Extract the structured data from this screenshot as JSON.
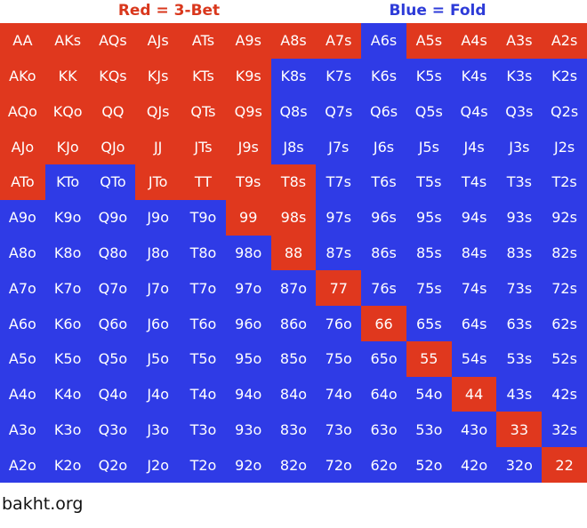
{
  "legend": [
    {
      "label": "Red = 3-Bet",
      "color": "#d9371c"
    },
    {
      "label": "Blue = Fold",
      "color": "#2d3bd8"
    }
  ],
  "palette": {
    "red": "#e0381e",
    "blue": "#2f3be6"
  },
  "grid": {
    "rows": [
      [
        "AA",
        "AKs",
        "AQs",
        "AJs",
        "ATs",
        "A9s",
        "A8s",
        "A7s",
        "A6s",
        "A5s",
        "A4s",
        "A3s",
        "A2s"
      ],
      [
        "AKo",
        "KK",
        "KQs",
        "KJs",
        "KTs",
        "K9s",
        "K8s",
        "K7s",
        "K6s",
        "K5s",
        "K4s",
        "K3s",
        "K2s"
      ],
      [
        "AQo",
        "KQo",
        "QQ",
        "QJs",
        "QTs",
        "Q9s",
        "Q8s",
        "Q7s",
        "Q6s",
        "Q5s",
        "Q4s",
        "Q3s",
        "Q2s"
      ],
      [
        "AJo",
        "KJo",
        "QJo",
        "JJ",
        "JTs",
        "J9s",
        "J8s",
        "J7s",
        "J6s",
        "J5s",
        "J4s",
        "J3s",
        "J2s"
      ],
      [
        "ATo",
        "KTo",
        "QTo",
        "JTo",
        "TT",
        "T9s",
        "T8s",
        "T7s",
        "T6s",
        "T5s",
        "T4s",
        "T3s",
        "T2s"
      ],
      [
        "A9o",
        "K9o",
        "Q9o",
        "J9o",
        "T9o",
        "99",
        "98s",
        "97s",
        "96s",
        "95s",
        "94s",
        "93s",
        "92s"
      ],
      [
        "A8o",
        "K8o",
        "Q8o",
        "J8o",
        "T8o",
        "98o",
        "88",
        "87s",
        "86s",
        "85s",
        "84s",
        "83s",
        "82s"
      ],
      [
        "A7o",
        "K7o",
        "Q7o",
        "J7o",
        "T7o",
        "97o",
        "87o",
        "77",
        "76s",
        "75s",
        "74s",
        "73s",
        "72s"
      ],
      [
        "A6o",
        "K6o",
        "Q6o",
        "J6o",
        "T6o",
        "96o",
        "86o",
        "76o",
        "66",
        "65s",
        "64s",
        "63s",
        "62s"
      ],
      [
        "A5o",
        "K5o",
        "Q5o",
        "J5o",
        "T5o",
        "95o",
        "85o",
        "75o",
        "65o",
        "55",
        "54s",
        "53s",
        "52s"
      ],
      [
        "A4o",
        "K4o",
        "Q4o",
        "J4o",
        "T4o",
        "94o",
        "84o",
        "74o",
        "64o",
        "54o",
        "44",
        "43s",
        "42s"
      ],
      [
        "A3o",
        "K3o",
        "Q3o",
        "J3o",
        "T3o",
        "93o",
        "83o",
        "73o",
        "63o",
        "53o",
        "43o",
        "33",
        "32s"
      ],
      [
        "A2o",
        "K2o",
        "Q2o",
        "J2o",
        "T2o",
        "92o",
        "82o",
        "72o",
        "62o",
        "52o",
        "42o",
        "32o",
        "22"
      ]
    ],
    "colors": [
      [
        "red",
        "red",
        "red",
        "red",
        "red",
        "red",
        "red",
        "red",
        "blue",
        "red",
        "red",
        "red",
        "red"
      ],
      [
        "red",
        "red",
        "red",
        "red",
        "red",
        "red",
        "blue",
        "blue",
        "blue",
        "blue",
        "blue",
        "blue",
        "blue"
      ],
      [
        "red",
        "red",
        "red",
        "red",
        "red",
        "red",
        "blue",
        "blue",
        "blue",
        "blue",
        "blue",
        "blue",
        "blue"
      ],
      [
        "red",
        "red",
        "red",
        "red",
        "red",
        "red",
        "blue",
        "blue",
        "blue",
        "blue",
        "blue",
        "blue",
        "blue"
      ],
      [
        "red",
        "blue",
        "blue",
        "red",
        "red",
        "red",
        "red",
        "blue",
        "blue",
        "blue",
        "blue",
        "blue",
        "blue"
      ],
      [
        "blue",
        "blue",
        "blue",
        "blue",
        "blue",
        "red",
        "red",
        "blue",
        "blue",
        "blue",
        "blue",
        "blue",
        "blue"
      ],
      [
        "blue",
        "blue",
        "blue",
        "blue",
        "blue",
        "blue",
        "red",
        "blue",
        "blue",
        "blue",
        "blue",
        "blue",
        "blue"
      ],
      [
        "blue",
        "blue",
        "blue",
        "blue",
        "blue",
        "blue",
        "blue",
        "red",
        "blue",
        "blue",
        "blue",
        "blue",
        "blue"
      ],
      [
        "blue",
        "blue",
        "blue",
        "blue",
        "blue",
        "blue",
        "blue",
        "blue",
        "red",
        "blue",
        "blue",
        "blue",
        "blue"
      ],
      [
        "blue",
        "blue",
        "blue",
        "blue",
        "blue",
        "blue",
        "blue",
        "blue",
        "blue",
        "red",
        "blue",
        "blue",
        "blue"
      ],
      [
        "blue",
        "blue",
        "blue",
        "blue",
        "blue",
        "blue",
        "blue",
        "blue",
        "blue",
        "blue",
        "red",
        "blue",
        "blue"
      ],
      [
        "blue",
        "blue",
        "blue",
        "blue",
        "blue",
        "blue",
        "blue",
        "blue",
        "blue",
        "blue",
        "blue",
        "red",
        "blue"
      ],
      [
        "blue",
        "blue",
        "blue",
        "blue",
        "blue",
        "blue",
        "blue",
        "blue",
        "blue",
        "blue",
        "blue",
        "blue",
        "red"
      ]
    ]
  },
  "footer": "bakht.org"
}
